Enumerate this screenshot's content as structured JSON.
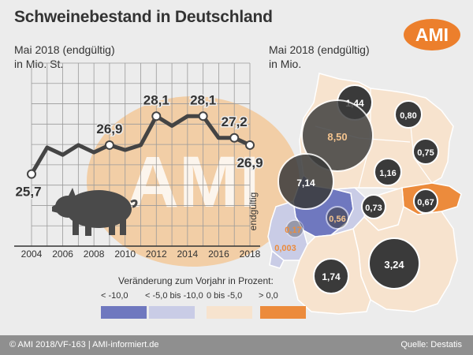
{
  "title": "Schweinebestand in Deutschland",
  "logo": "AMI",
  "left_subtitle": [
    "Mai 2018 (endgültig)",
    "in Mio. St."
  ],
  "right_subtitle": [
    "Mai 2018 (endgültig)",
    "in Mio."
  ],
  "watermark": "AMI",
  "colors": {
    "line": "#444444",
    "orange": "#ec8b3c",
    "light_orange": "#f7e3ce",
    "light_blue": "#c9cce6",
    "dark_blue": "#6f78bf",
    "bubble": "#3a3a3a"
  },
  "chart_data": [
    {
      "type": "line",
      "x": [
        2004,
        2005,
        2006,
        2007,
        2008,
        2009,
        2010,
        2011,
        2012,
        2013,
        2014,
        2015,
        2016,
        2017,
        2018
      ],
      "values": [
        25.7,
        26.8,
        26.5,
        26.9,
        26.6,
        26.9,
        26.7,
        26.9,
        28.1,
        27.7,
        28.1,
        28.1,
        27.2,
        27.2,
        26.9
      ],
      "point_labels": [
        {
          "x": 2004,
          "text": "25,7"
        },
        {
          "x": 2009,
          "text": "26,9"
        },
        {
          "x": 2012,
          "text": "28,1"
        },
        {
          "x": 2015,
          "text": "28,1"
        },
        {
          "x": 2017,
          "text": "27,2"
        },
        {
          "x": 2018,
          "text": "26,9"
        }
      ],
      "xticks": [
        "2004",
        "2006",
        "2008",
        "2010",
        "2012",
        "2014",
        "2016",
        "2018"
      ],
      "annotation": "endgültig",
      "grid": true
    },
    {
      "type": "map",
      "bubbles": [
        "1,44",
        "8,50",
        "0,80",
        "7,14",
        "0,75",
        "1,16",
        "0,67",
        "0,56",
        "0,73",
        "0,17",
        "0,003",
        "3,24",
        "1,74"
      ],
      "legend_title": "Veränderung zum Vorjahr in Prozent:",
      "legend": [
        {
          "label": "< -10,0",
          "color": "#6f78bf"
        },
        {
          "label": "< -5,0 bis -10,0",
          "color": "#c9cce6"
        },
        {
          "label": "0 bis -5,0",
          "color": "#f7e3ce"
        },
        {
          "label": "> 0,0",
          "color": "#ec8b3c"
        }
      ]
    }
  ],
  "footer_left": "© AMI 2018/VF-163 | AMI-informiert.de",
  "footer_right": "Quelle: Destatis"
}
